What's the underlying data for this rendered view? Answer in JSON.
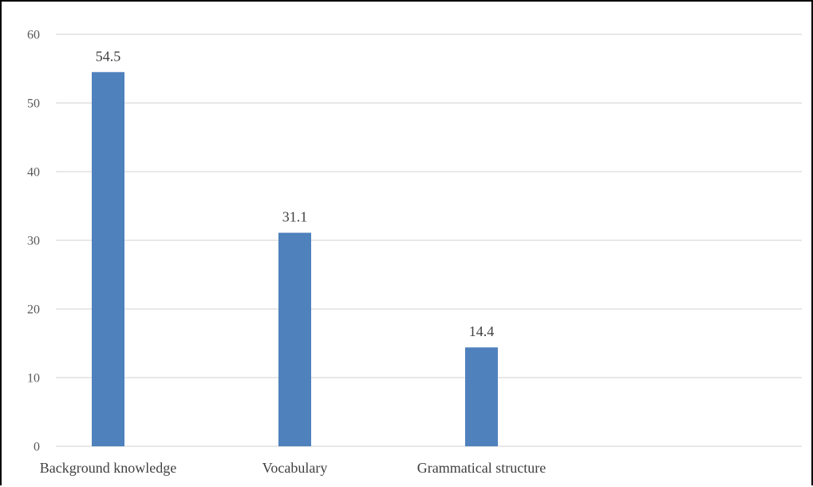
{
  "chart_data": {
    "type": "bar",
    "categories": [
      "Background knowledge",
      "Vocabulary",
      "Grammatical structure"
    ],
    "values": [
      54.5,
      31.1,
      14.4
    ],
    "data_labels": [
      "54.5",
      "31.1",
      "14.4"
    ],
    "title": "",
    "xlabel": "",
    "ylabel": "",
    "ylim": [
      0,
      60
    ],
    "yticks": [
      0,
      10,
      20,
      30,
      40,
      50,
      60
    ],
    "grid": true,
    "legend": "none",
    "bar_color": "#4f81bd",
    "grid_color": "#d9d9d9"
  }
}
